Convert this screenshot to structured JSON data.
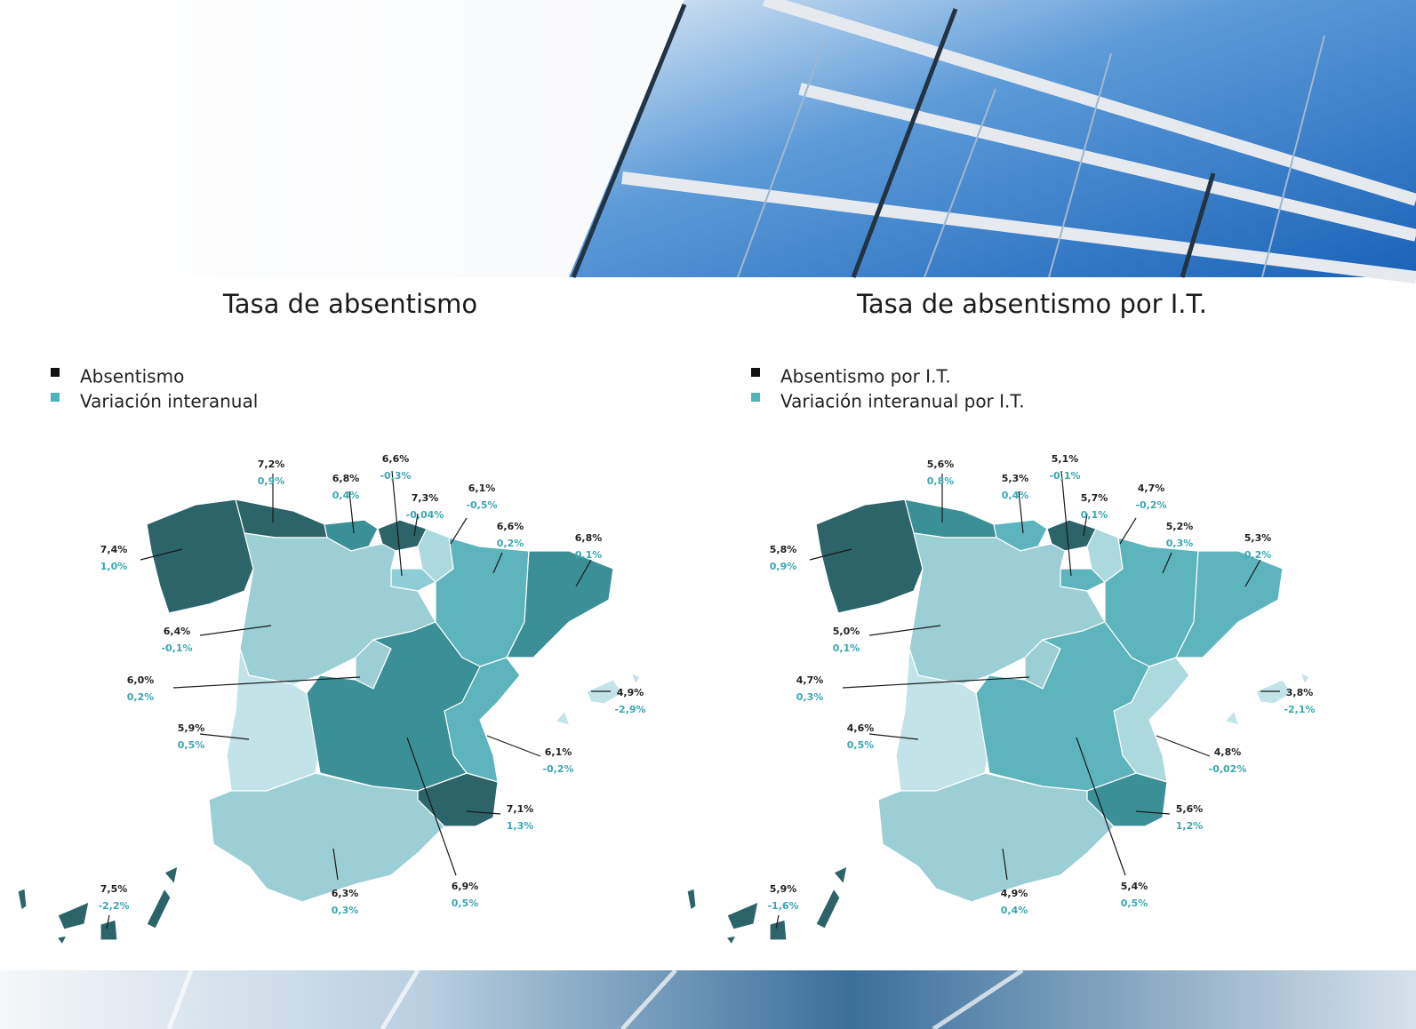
{
  "maps": [
    {
      "title": "Tasa de absentismo",
      "legend": [
        {
          "label": "Absentismo",
          "color": "#111111"
        },
        {
          "label": "Variación interanual",
          "color": "#4fb3bb"
        }
      ],
      "regions": [
        {
          "value": "7,4%",
          "change": "1,0%",
          "color": "#2c646a"
        },
        {
          "value": "7,2%",
          "change": "0,9%",
          "color": "#2c646a"
        },
        {
          "value": "6,8%",
          "change": "0,4%",
          "color": "#3b8f97"
        },
        {
          "value": "6,6%",
          "change": "-0,3%",
          "color": "#8ecdd5"
        },
        {
          "value": "7,3%",
          "change": "-0,04%",
          "color": "#2c646a"
        },
        {
          "value": "6,1%",
          "change": "-0,5%",
          "color": "#abd9de"
        },
        {
          "value": "6,6%",
          "change": "0,2%",
          "color": "#5db4bd"
        },
        {
          "value": "6,8%",
          "change": "0,1%",
          "color": "#3b8f97"
        },
        {
          "value": "6,4%",
          "change": "-0,1%",
          "color": "#9ccfd5"
        },
        {
          "value": "6,0%",
          "change": "0,2%",
          "color": "#9ccfd5"
        },
        {
          "value": "5,9%",
          "change": "0,5%",
          "color": "#c2e4e8"
        },
        {
          "value": "4,9%",
          "change": "-2,9%",
          "color": "#c2e4e8"
        },
        {
          "value": "6,1%",
          "change": "-0,2%",
          "color": "#5db4bd"
        },
        {
          "value": "7,1%",
          "change": "1,3%",
          "color": "#2c646a"
        },
        {
          "value": "6,9%",
          "change": "0,5%",
          "color": "#3b8f97"
        },
        {
          "value": "6,3%",
          "change": "0,3%",
          "color": "#9ccfd5"
        },
        {
          "value": "7,5%",
          "change": "-2,2%",
          "color": "#2c646a"
        }
      ]
    },
    {
      "title": "Tasa de absentismo por I.T.",
      "legend": [
        {
          "label": "Absentismo por I.T.",
          "color": "#111111"
        },
        {
          "label": "Variación interanual por I.T.",
          "color": "#4fb3bb"
        }
      ],
      "regions": [
        {
          "value": "5,8%",
          "change": "0,9%",
          "color": "#2c646a"
        },
        {
          "value": "5,6%",
          "change": "0,8%",
          "color": "#3b8f97"
        },
        {
          "value": "5,3%",
          "change": "0,4%",
          "color": "#5db4bd"
        },
        {
          "value": "5,1%",
          "change": "-0,1%",
          "color": "#5db4bd"
        },
        {
          "value": "5,7%",
          "change": "0,1%",
          "color": "#2c646a"
        },
        {
          "value": "4,7%",
          "change": "-0,2%",
          "color": "#abd9de"
        },
        {
          "value": "5,2%",
          "change": "0,3%",
          "color": "#5db4bd"
        },
        {
          "value": "5,3%",
          "change": "0,2%",
          "color": "#5db4bd"
        },
        {
          "value": "5,0%",
          "change": "0,1%",
          "color": "#9ccfd5"
        },
        {
          "value": "4,7%",
          "change": "0,3%",
          "color": "#9ccfd5"
        },
        {
          "value": "4,6%",
          "change": "0,5%",
          "color": "#c2e4e8"
        },
        {
          "value": "3,8%",
          "change": "-2,1%",
          "color": "#c2e4e8"
        },
        {
          "value": "4,8%",
          "change": "-0,02%",
          "color": "#abd9de"
        },
        {
          "value": "5,6%",
          "change": "1,2%",
          "color": "#3b8f97"
        },
        {
          "value": "5,4%",
          "change": "0,5%",
          "color": "#5db4bd"
        },
        {
          "value": "4,9%",
          "change": "0,4%",
          "color": "#9ccfd5"
        },
        {
          "value": "5,9%",
          "change": "-1,6%",
          "color": "#2c646a"
        }
      ]
    }
  ]
}
